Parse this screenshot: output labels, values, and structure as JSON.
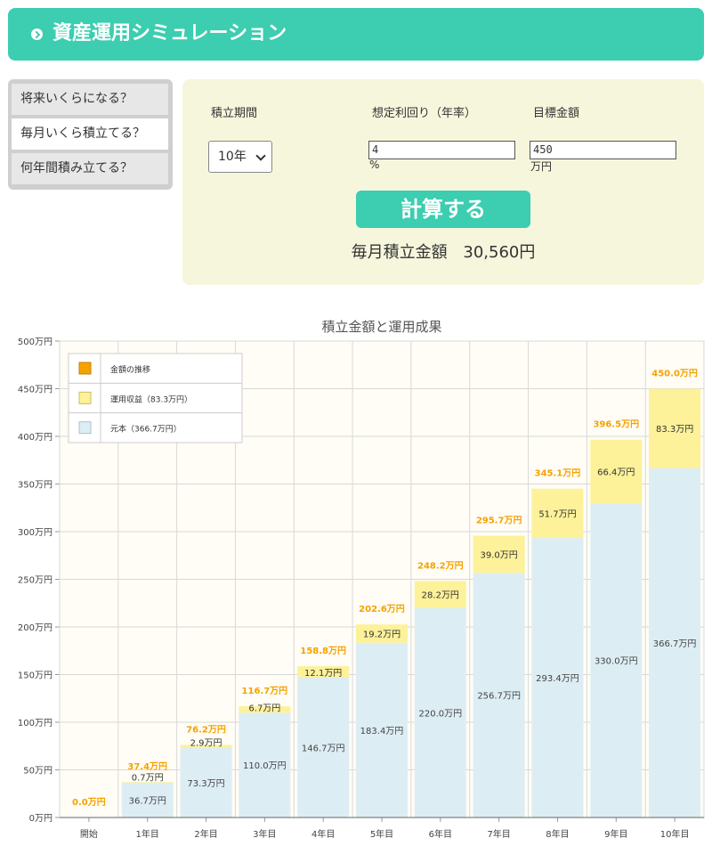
{
  "header": {
    "title": "資産運用シミュレーション"
  },
  "tabs": [
    {
      "label": "将来いくらになる？",
      "active": false
    },
    {
      "label": "毎月いくら積立てる？",
      "active": true
    },
    {
      "label": "何年間積み立てる？",
      "active": false
    }
  ],
  "form": {
    "period_label": "積立期間",
    "period_value": "10年",
    "rate_label": "想定利回り（年率）",
    "rate_value": "4",
    "rate_unit": "%",
    "target_label": "目標金額",
    "target_value": "450",
    "target_unit": "万円",
    "calc_button": "計算する",
    "result_label": "毎月積立金額",
    "result_value": "30,560円"
  },
  "colors": {
    "accent": "#3dcdb0",
    "principal": "#ddedf4",
    "gain": "#fdf19a",
    "total_label": "#f5a200"
  },
  "chart_data": {
    "type": "bar",
    "stacked": true,
    "title": "積立金額と運用成果",
    "categories": [
      "開始",
      "1年目",
      "2年目",
      "3年目",
      "4年目",
      "5年目",
      "6年目",
      "7年目",
      "8年目",
      "9年目",
      "10年目"
    ],
    "ylim": [
      0,
      500
    ],
    "yticks": [
      "0万円",
      "50万円",
      "100万円",
      "150万円",
      "200万円",
      "250万円",
      "300万円",
      "350万円",
      "400万円",
      "450万円",
      "500万円"
    ],
    "series": [
      {
        "name": "元本（366.7万円）",
        "values": [
          0,
          36.7,
          73.3,
          110.0,
          146.7,
          183.4,
          220.0,
          256.7,
          293.4,
          330.0,
          366.7
        ],
        "labels": [
          "",
          "36.7万円",
          "73.3万円",
          "110.0万円",
          "146.7万円",
          "183.4万円",
          "220.0万円",
          "256.7万円",
          "293.4万円",
          "330.0万円",
          "366.7万円"
        ]
      },
      {
        "name": "運用収益（83.3万円）",
        "values": [
          0,
          0.7,
          2.9,
          6.7,
          12.1,
          19.2,
          28.2,
          39.0,
          51.7,
          66.4,
          83.3
        ],
        "labels": [
          "",
          "0.7万円",
          "2.9万円",
          "6.7万円",
          "12.1万円",
          "19.2万円",
          "28.2万円",
          "39.0万円",
          "51.7万円",
          "66.4万円",
          "83.3万円"
        ]
      }
    ],
    "totals": {
      "name": "金額の推移",
      "values": [
        0,
        37.4,
        76.2,
        116.7,
        158.8,
        202.6,
        248.2,
        295.7,
        345.1,
        396.5,
        450.0
      ],
      "labels": [
        "0.0万円",
        "37.4万円",
        "76.2万円",
        "116.7万円",
        "158.8万円",
        "202.6万円",
        "248.2万円",
        "295.7万円",
        "345.1万円",
        "396.5万円",
        "450.0万円"
      ]
    },
    "legend": "top-left",
    "grid": true
  }
}
